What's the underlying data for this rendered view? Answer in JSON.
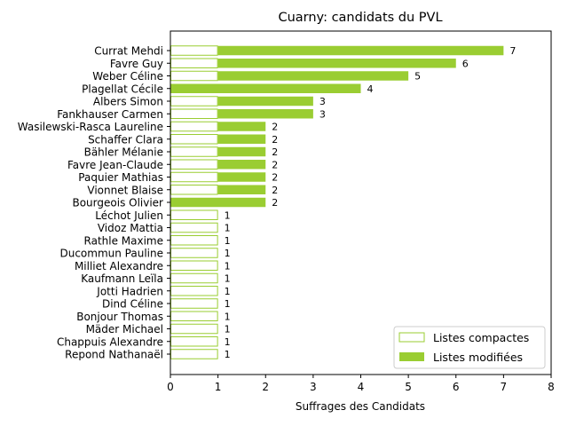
{
  "chart_data": {
    "type": "bar",
    "orientation": "horizontal",
    "title": "Cuarny: candidats du PVL",
    "xlabel": "Suffrages des Candidats",
    "ylabel": "",
    "xlim": [
      0,
      8
    ],
    "xticks": [
      "0",
      "1",
      "2",
      "3",
      "4",
      "5",
      "6",
      "7",
      "8"
    ],
    "grid": false,
    "legend_position": "lower right",
    "colors": {
      "bar": "#9acd32",
      "axis": "#000000"
    },
    "categories": [
      "Currat Mehdi",
      "Favre Guy",
      "Weber Céline",
      "Plagellat Cécile",
      "Albers Simon",
      "Fankhauser Carmen",
      "Wasilewski-Rasca Laureline",
      "Schaffer Clara",
      "Bähler Mélanie",
      "Favre Jean-Claude",
      "Paquier Mathias",
      "Vionnet Blaise",
      "Bourgeois Olivier",
      "Léchot Julien",
      "Vidoz Mattia",
      "Rathle Maxime",
      "Ducommun Pauline",
      "Milliet Alexandre",
      "Kaufmann Leïla",
      "Jotti Hadrien",
      "Dind Céline",
      "Bonjour Thomas",
      "Mäder Michael",
      "Chappuis Alexandre",
      "Repond Nathanaël"
    ],
    "series": [
      {
        "name": "Listes compactes",
        "style": "outline",
        "values": [
          1,
          1,
          1,
          0,
          1,
          1,
          1,
          1,
          1,
          1,
          1,
          1,
          0,
          1,
          1,
          1,
          1,
          1,
          1,
          1,
          1,
          1,
          1,
          1,
          1
        ]
      },
      {
        "name": "Listes modifiées",
        "style": "filled",
        "values": [
          6,
          5,
          4,
          4,
          2,
          2,
          1,
          1,
          1,
          1,
          1,
          1,
          2,
          0,
          0,
          0,
          0,
          0,
          0,
          0,
          0,
          0,
          0,
          0,
          0
        ]
      }
    ],
    "totals": [
      7,
      6,
      5,
      4,
      3,
      3,
      2,
      2,
      2,
      2,
      2,
      2,
      2,
      1,
      1,
      1,
      1,
      1,
      1,
      1,
      1,
      1,
      1,
      1,
      1
    ]
  }
}
